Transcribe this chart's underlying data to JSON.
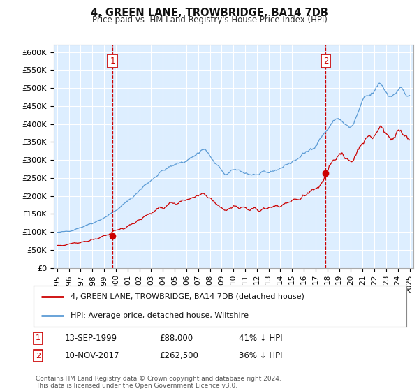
{
  "title": "4, GREEN LANE, TROWBRIDGE, BA14 7DB",
  "subtitle": "Price paid vs. HM Land Registry's House Price Index (HPI)",
  "ylabel_ticks": [
    "£0",
    "£50K",
    "£100K",
    "£150K",
    "£200K",
    "£250K",
    "£300K",
    "£350K",
    "£400K",
    "£450K",
    "£500K",
    "£550K",
    "£600K"
  ],
  "ytick_values": [
    0,
    50000,
    100000,
    150000,
    200000,
    250000,
    300000,
    350000,
    400000,
    450000,
    500000,
    550000,
    600000
  ],
  "xlim": [
    1994.7,
    2025.3
  ],
  "ylim": [
    0,
    620000
  ],
  "hpi_color": "#5b9bd5",
  "price_color": "#cc0000",
  "purchase1": {
    "date_num": 1999.71,
    "price": 88000,
    "label": "1"
  },
  "purchase2": {
    "date_num": 2017.86,
    "price": 262500,
    "label": "2"
  },
  "legend_entry1": "4, GREEN LANE, TROWBRIDGE, BA14 7DB (detached house)",
  "legend_entry2": "HPI: Average price, detached house, Wiltshire",
  "background_color": "#ffffff",
  "plot_bg_color": "#ddeeff",
  "grid_color": "#ffffff"
}
